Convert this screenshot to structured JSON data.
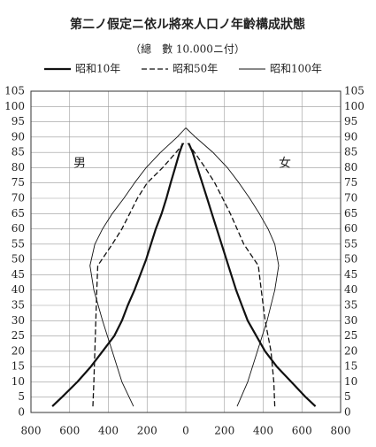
{
  "chart_data": {
    "type": "pyramid-line",
    "title": "第二ノ假定ニ依ル將來人口ノ年齡構成狀態",
    "subtitle": "（總　數 10.000ニ付）",
    "left_label": "男",
    "right_label": "女",
    "xlim": [
      -800,
      800
    ],
    "xticks": [
      {
        "value": -800,
        "label": "800"
      },
      {
        "value": -600,
        "label": "600"
      },
      {
        "value": -400,
        "label": "400"
      },
      {
        "value": -200,
        "label": "200"
      },
      0,
      200,
      400,
      600,
      800
    ],
    "ylim": [
      0,
      105
    ],
    "yticks": [
      0,
      5,
      10,
      15,
      20,
      25,
      30,
      35,
      40,
      45,
      50,
      55,
      60,
      65,
      70,
      75,
      80,
      85,
      90,
      95,
      100,
      105
    ],
    "grid": true,
    "legend": "top",
    "series": [
      {
        "name": "昭和10年",
        "color": "#111",
        "style": "thick",
        "ages": [
          2,
          5,
          10,
          15,
          20,
          25,
          30,
          35,
          40,
          45,
          50,
          55,
          60,
          65,
          70,
          75,
          80,
          85,
          88
        ],
        "male": [
          690,
          640,
          560,
          490,
          430,
          370,
          330,
          300,
          265,
          235,
          205,
          180,
          155,
          125,
          100,
          78,
          55,
          32,
          15
        ],
        "female": [
          670,
          620,
          545,
          470,
          410,
          365,
          320,
          290,
          260,
          235,
          210,
          185,
          160,
          135,
          110,
          85,
          60,
          35,
          15
        ]
      },
      {
        "name": "昭和50年",
        "color": "#111",
        "style": "dashed",
        "ages": [
          2,
          10,
          20,
          30,
          40,
          48,
          55,
          60,
          65,
          70,
          75,
          80,
          85,
          88
        ],
        "male": [
          480,
          475,
          470,
          465,
          460,
          455,
          380,
          330,
          290,
          250,
          200,
          120,
          50,
          10
        ],
        "female": [
          460,
          455,
          440,
          410,
          390,
          375,
          300,
          265,
          230,
          190,
          150,
          100,
          45,
          10
        ]
      },
      {
        "name": "昭和100年",
        "color": "#111",
        "style": "thin",
        "ages": [
          2,
          10,
          20,
          30,
          40,
          48,
          55,
          60,
          65,
          70,
          75,
          80,
          85,
          90,
          93
        ],
        "male": [
          270,
          330,
          380,
          430,
          475,
          495,
          470,
          430,
          380,
          320,
          265,
          205,
          130,
          45,
          0
        ],
        "female": [
          265,
          320,
          370,
          420,
          460,
          480,
          460,
          425,
          380,
          330,
          275,
          215,
          140,
          50,
          0
        ]
      }
    ]
  }
}
